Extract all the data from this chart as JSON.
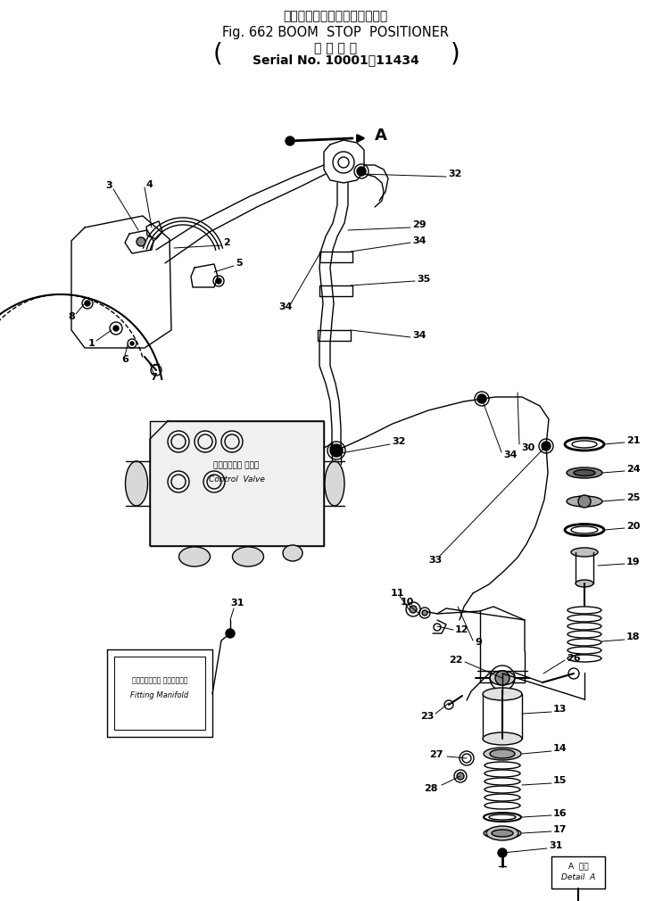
{
  "title_jp": "ブーム　ストップ　ポジショナ",
  "title_en": "Fig. 662 BOOM  STOP  POSITIONER",
  "subtitle_jp": "適 用 号 機",
  "subtitle_en": "Serial No. 10001～11434",
  "bg_color": "#ffffff",
  "line_color": "#000000"
}
